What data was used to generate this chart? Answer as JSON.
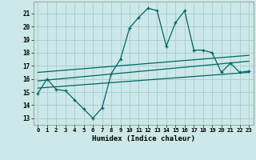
{
  "title": "",
  "xlabel": "Humidex (Indice chaleur)",
  "xlim": [
    -0.5,
    23.5
  ],
  "ylim": [
    12.5,
    21.9
  ],
  "yticks": [
    13,
    14,
    15,
    16,
    17,
    18,
    19,
    20,
    21
  ],
  "xticks": [
    0,
    1,
    2,
    3,
    4,
    5,
    6,
    7,
    8,
    9,
    10,
    11,
    12,
    13,
    14,
    15,
    16,
    17,
    18,
    19,
    20,
    21,
    22,
    23
  ],
  "bg_color": "#cce8e8",
  "grid_color": "#aacccc",
  "line_color": "#006666",
  "main_x": [
    0,
    1,
    2,
    3,
    4,
    5,
    6,
    7,
    8,
    9,
    10,
    11,
    12,
    13,
    14,
    15,
    16,
    17,
    18,
    19,
    20,
    21,
    22,
    23
  ],
  "main_y": [
    14.9,
    16.0,
    15.2,
    15.1,
    14.4,
    13.7,
    13.0,
    13.8,
    16.4,
    17.5,
    19.9,
    20.7,
    21.4,
    21.2,
    18.5,
    20.3,
    21.2,
    18.2,
    18.2,
    18.0,
    16.5,
    17.2,
    16.5,
    16.6
  ],
  "trend1_x": [
    0,
    23
  ],
  "trend1_y": [
    16.5,
    17.8
  ],
  "trend2_x": [
    0,
    23
  ],
  "trend2_y": [
    15.85,
    17.35
  ],
  "trend3_x": [
    0,
    23
  ],
  "trend3_y": [
    15.3,
    16.5
  ]
}
